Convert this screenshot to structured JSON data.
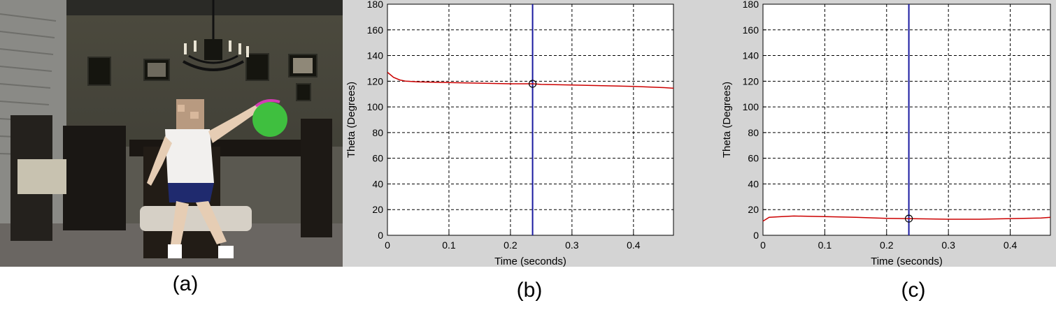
{
  "captions": {
    "a": "(a)",
    "b": "(b)",
    "c": "(c)"
  },
  "photo": {
    "description_icon": "child-seated-reaching-photo-icon",
    "target_color": "#3fbf3f"
  },
  "colors": {
    "trace": "#cc0000",
    "cursor": "#1a1aa0",
    "grid": "#000000",
    "panel_bg": "#d4d4d4"
  },
  "chart_data": [
    {
      "type": "line",
      "xlabel": "Time (seconds)",
      "ylabel": "Theta (Degrees)",
      "xlim": [
        0,
        0.465
      ],
      "ylim": [
        0,
        180
      ],
      "xticks": [
        "0",
        "0.1",
        "0.2",
        "0.3",
        "0.4"
      ],
      "yticks": [
        "0",
        "20",
        "40",
        "60",
        "80",
        "100",
        "120",
        "140",
        "160",
        "180"
      ],
      "grid": true,
      "cursor_x": 0.236,
      "marker": {
        "x": 0.236,
        "y": 118
      },
      "series": [
        {
          "x": [
            0,
            0.01,
            0.02,
            0.03,
            0.05,
            0.1,
            0.15,
            0.2,
            0.236,
            0.25,
            0.3,
            0.35,
            0.4,
            0.45,
            0.465
          ],
          "y": [
            127,
            123,
            121,
            120,
            119.5,
            119,
            118.5,
            118,
            118,
            117.5,
            117,
            116.5,
            116,
            115,
            114.5
          ]
        }
      ]
    },
    {
      "type": "line",
      "xlabel": "Time (seconds)",
      "ylabel": "Theta (Degrees)",
      "xlim": [
        0,
        0.465
      ],
      "ylim": [
        0,
        180
      ],
      "xticks": [
        "0",
        "0.1",
        "0.2",
        "0.3",
        "0.4"
      ],
      "yticks": [
        "0",
        "20",
        "40",
        "60",
        "80",
        "100",
        "120",
        "140",
        "160",
        "180"
      ],
      "grid": true,
      "cursor_x": 0.236,
      "marker": {
        "x": 0.236,
        "y": 13
      },
      "series": [
        {
          "x": [
            0,
            0.01,
            0.03,
            0.05,
            0.1,
            0.15,
            0.2,
            0.236,
            0.3,
            0.35,
            0.4,
            0.45,
            0.465
          ],
          "y": [
            11,
            14,
            14.5,
            15,
            14.5,
            14,
            13.2,
            13,
            12.5,
            12.5,
            13,
            13.5,
            14
          ]
        }
      ]
    }
  ]
}
